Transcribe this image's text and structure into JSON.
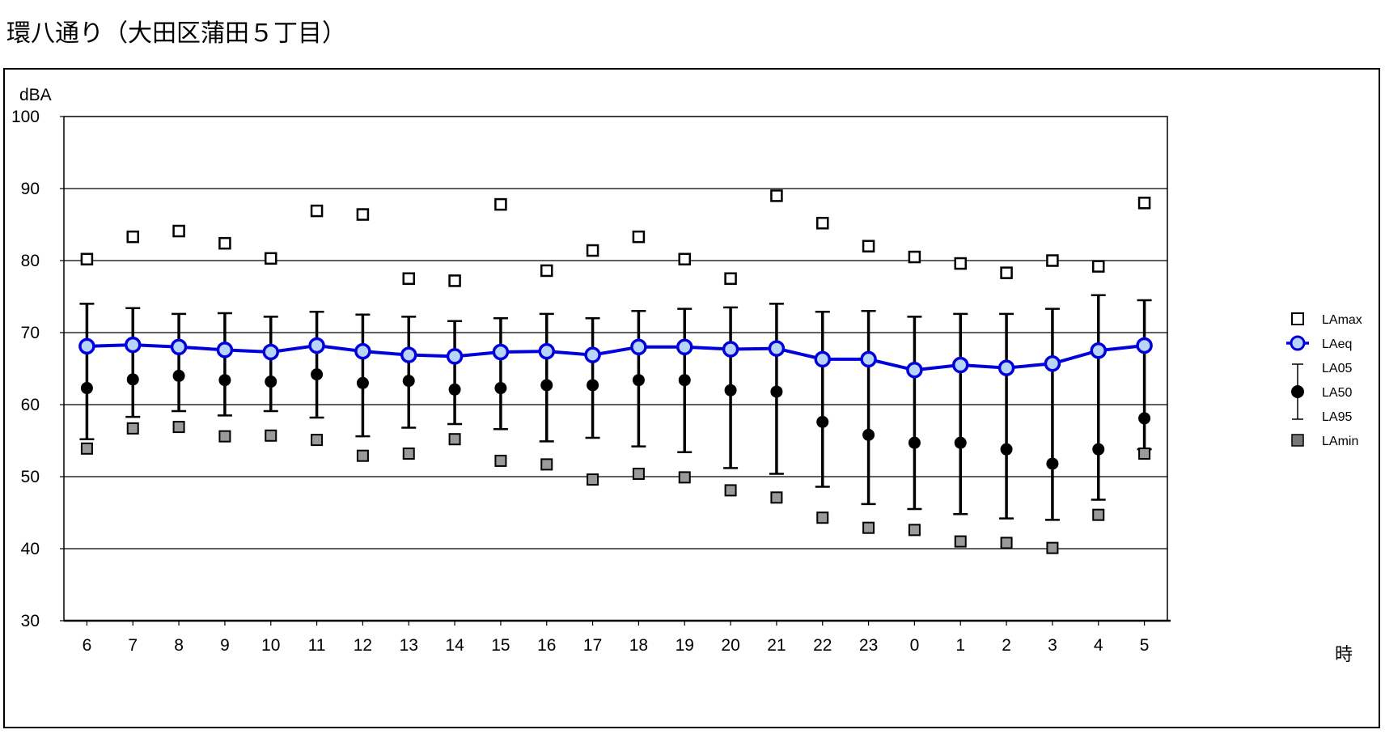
{
  "page_title": "環八通り（大田区蒲田５丁目）",
  "chart_data": {
    "type": "scatter",
    "ylabel": "dBA",
    "xlabel": "時",
    "ylim": [
      30,
      100
    ],
    "yticks": [
      30,
      40,
      50,
      60,
      70,
      80,
      90,
      100
    ],
    "grid": true,
    "legend_position": "right",
    "categories": [
      "6",
      "7",
      "8",
      "9",
      "10",
      "11",
      "12",
      "13",
      "14",
      "15",
      "16",
      "17",
      "18",
      "19",
      "20",
      "21",
      "22",
      "23",
      "0",
      "1",
      "2",
      "3",
      "4",
      "5"
    ],
    "series": [
      {
        "name": "LAmax",
        "marker": "open-square",
        "color": "#000000",
        "values": [
          80.2,
          83.3,
          84.1,
          82.4,
          80.3,
          86.9,
          86.4,
          77.5,
          77.2,
          87.8,
          78.6,
          81.4,
          83.3,
          80.2,
          77.5,
          89.0,
          85.2,
          82.0,
          80.5,
          79.6,
          78.3,
          80.0,
          79.2,
          88.0
        ]
      },
      {
        "name": "LAeq",
        "marker": "circle-line",
        "color": "#0000dd",
        "fill": "#b8d4f8",
        "values": [
          68.1,
          68.3,
          68.0,
          67.6,
          67.3,
          68.2,
          67.4,
          66.9,
          66.7,
          67.3,
          67.4,
          66.9,
          68.0,
          68.0,
          67.7,
          67.8,
          66.3,
          66.3,
          64.8,
          65.5,
          65.1,
          65.7,
          67.5,
          68.2
        ]
      },
      {
        "name": "LA05",
        "marker": "error-bar-top",
        "color": "#000000",
        "values": [
          74.0,
          73.4,
          72.6,
          72.7,
          72.2,
          72.9,
          72.5,
          72.2,
          71.6,
          72.0,
          72.6,
          72.0,
          73.0,
          73.3,
          73.5,
          74.0,
          72.9,
          73.0,
          72.2,
          72.6,
          72.6,
          73.3,
          75.2,
          74.5
        ]
      },
      {
        "name": "LA50",
        "marker": "filled-circle",
        "color": "#000000",
        "values": [
          62.3,
          63.5,
          64.0,
          63.4,
          63.2,
          64.2,
          63.0,
          63.3,
          62.1,
          62.3,
          62.7,
          62.7,
          63.4,
          63.4,
          62.0,
          61.8,
          57.6,
          55.8,
          54.7,
          54.7,
          53.8,
          51.8,
          53.8,
          58.1
        ]
      },
      {
        "name": "LA95",
        "marker": "error-bar-bottom",
        "color": "#000000",
        "values": [
          55.2,
          58.3,
          59.1,
          58.5,
          59.1,
          58.2,
          55.6,
          56.8,
          57.3,
          56.6,
          54.9,
          55.4,
          54.2,
          53.4,
          51.2,
          50.4,
          48.6,
          46.2,
          45.5,
          44.8,
          44.2,
          44.0,
          46.8,
          53.8
        ]
      },
      {
        "name": "LAmin",
        "marker": "filled-square",
        "color": "#888888",
        "values": [
          53.9,
          56.7,
          56.9,
          55.6,
          55.7,
          55.1,
          52.9,
          53.2,
          55.2,
          52.2,
          51.7,
          49.6,
          50.4,
          49.9,
          48.1,
          47.1,
          44.3,
          42.9,
          42.6,
          41.0,
          40.8,
          40.1,
          44.7,
          53.2
        ]
      }
    ]
  }
}
